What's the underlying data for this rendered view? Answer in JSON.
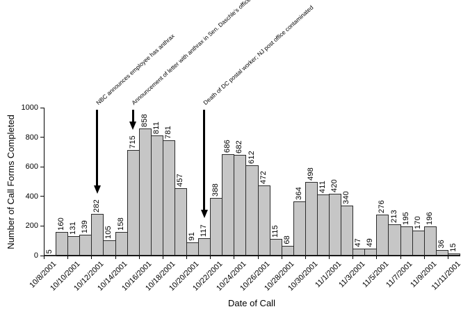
{
  "chart_data": {
    "type": "bar",
    "title": "",
    "xlabel": "Date of Call",
    "ylabel": "Number of Call Forms Completed",
    "ylim": [
      0,
      1000
    ],
    "yticks": [
      0,
      200,
      400,
      600,
      800,
      1000
    ],
    "grid": false,
    "legend": null,
    "x_tick_label_interval": 2,
    "bar_fill": "#c6c6c6",
    "bar_border": "#2a2a2a",
    "categories": [
      "10/8/2001",
      "10/9/2001",
      "10/10/2001",
      "10/11/2001",
      "10/12/2001",
      "10/13/2001",
      "10/14/2001",
      "10/15/2001",
      "10/16/2001",
      "10/17/2001",
      "10/18/2001",
      "10/19/2001",
      "10/20/2001",
      "10/21/2001",
      "10/22/2001",
      "10/23/2001",
      "10/24/2001",
      "10/25/2001",
      "10/26/2001",
      "10/27/2001",
      "10/28/2001",
      "10/29/2001",
      "10/30/2001",
      "10/31/2001",
      "11/1/2001",
      "11/2/2001",
      "11/3/2001",
      "11/4/2001",
      "11/5/2001",
      "11/6/2001",
      "11/7/2001",
      "11/8/2001",
      "11/9/2001",
      "11/10/2001",
      "11/11/2001"
    ],
    "values": [
      5,
      160,
      131,
      139,
      282,
      105,
      158,
      715,
      858,
      811,
      781,
      457,
      91,
      117,
      388,
      686,
      682,
      612,
      472,
      115,
      68,
      364,
      498,
      411,
      420,
      340,
      47,
      49,
      276,
      213,
      195,
      170,
      196,
      36,
      15
    ],
    "annotations": [
      {
        "text": "NBC announces employee has anthrax",
        "category": "10/12/2001",
        "bar_index": 4
      },
      {
        "text": "Announcement of letter with anthrax in Sen. Daschle's office",
        "category": "10/15/2001",
        "bar_index": 7
      },
      {
        "text": "Death of DC postal worker; NJ post office contaminated",
        "category": "10/21/2001",
        "bar_index": 13
      }
    ]
  }
}
